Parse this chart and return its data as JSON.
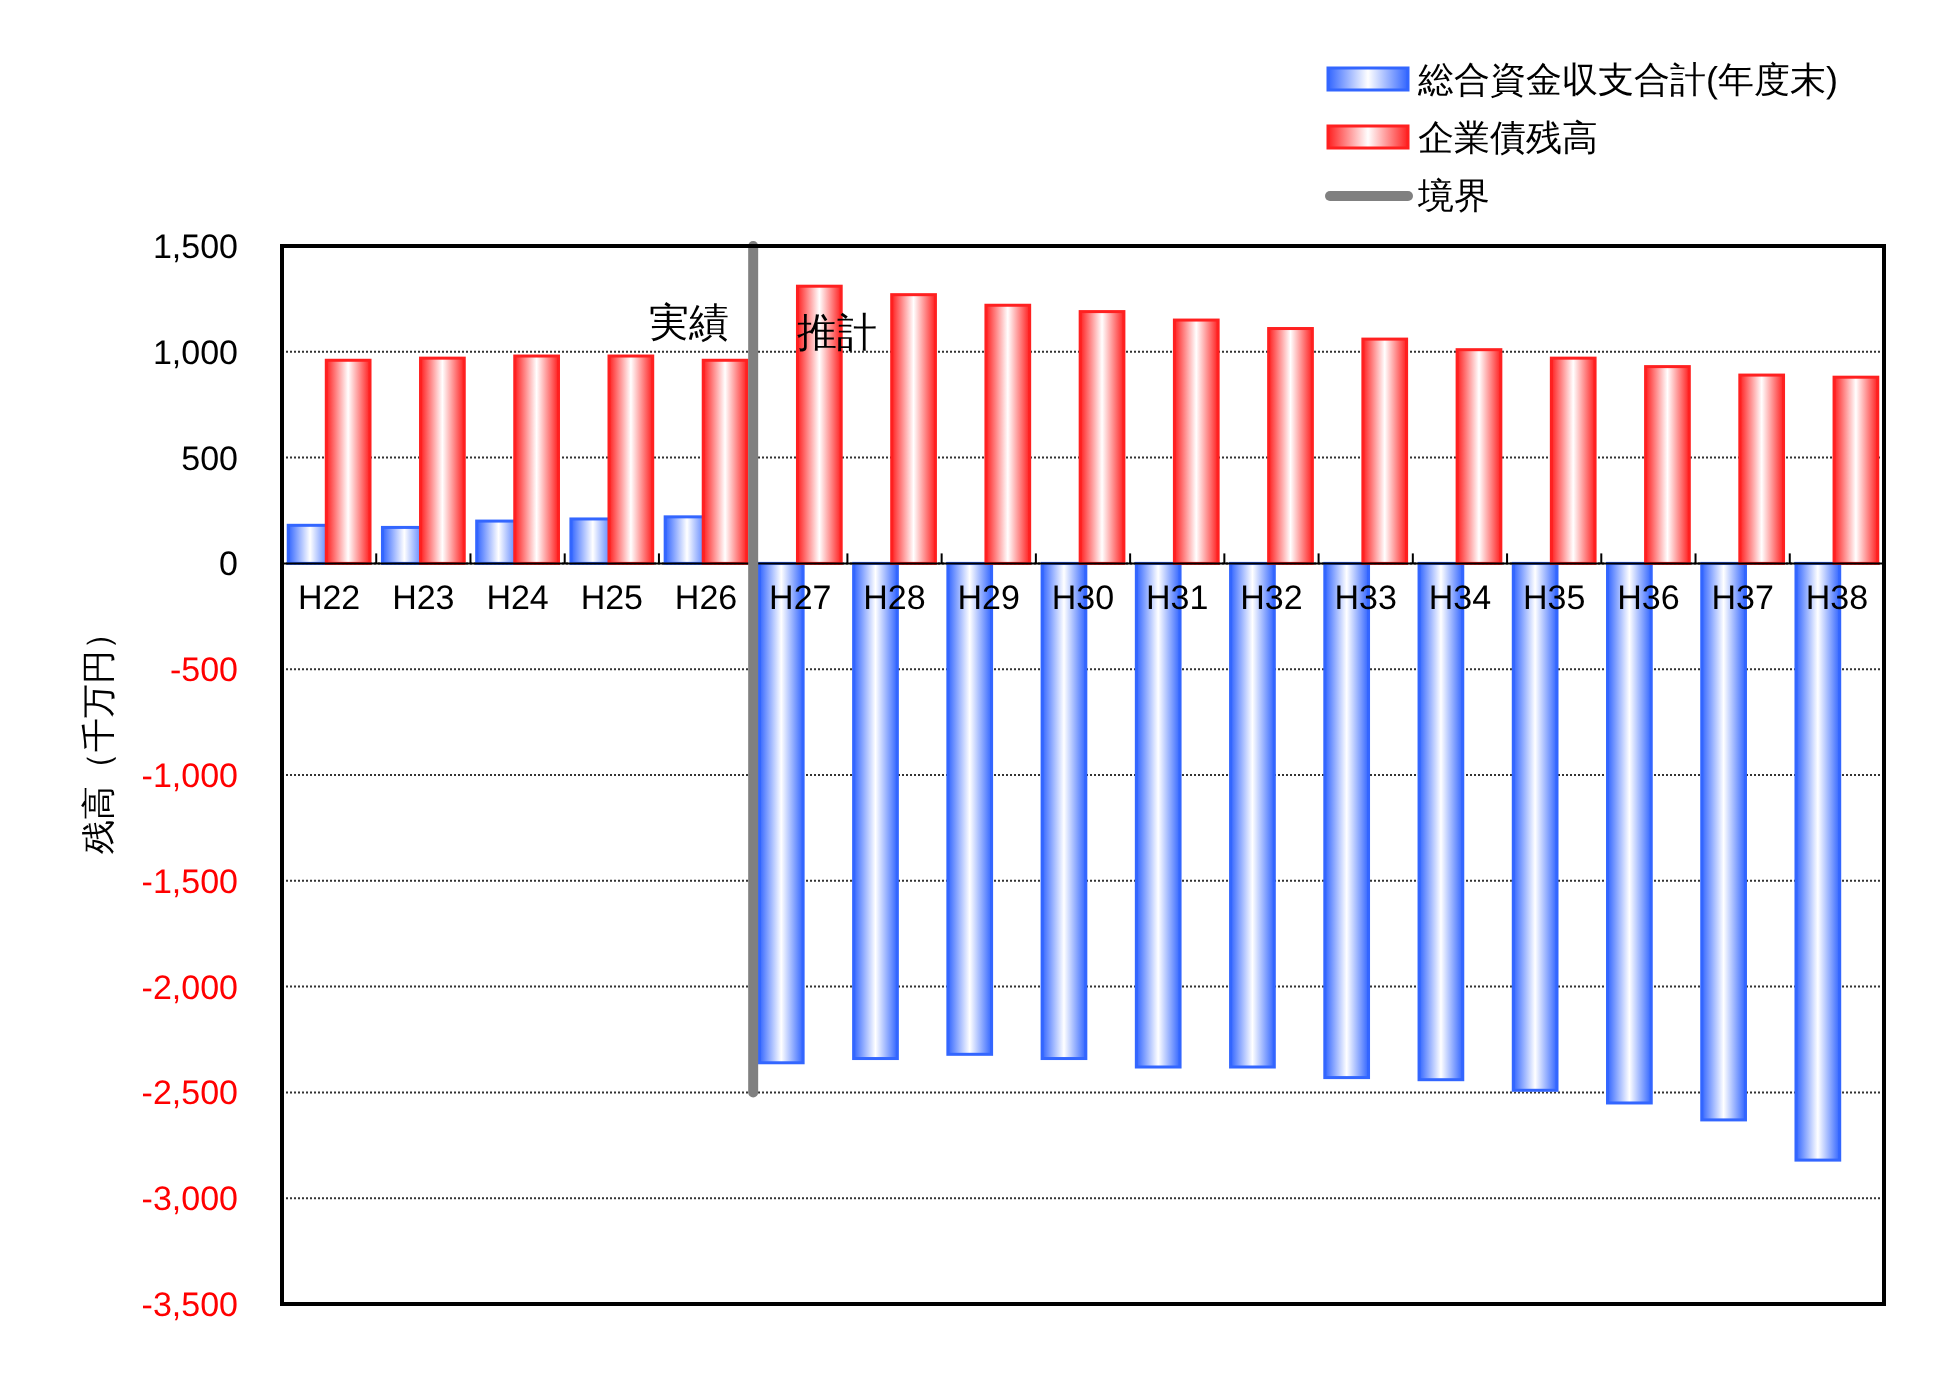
{
  "chart_data": {
    "type": "bar",
    "ylabel": "残高（千万円）",
    "categories": [
      "H22",
      "H23",
      "H24",
      "H25",
      "H26",
      "H27",
      "H28",
      "H29",
      "H30",
      "H31",
      "H32",
      "H33",
      "H34",
      "H35",
      "H36",
      "H37",
      "H38"
    ],
    "series": [
      {
        "name": "総合資金収支合計(年度末)",
        "color": "#3366ff",
        "values": [
          180,
          170,
          200,
          210,
          220,
          -2360,
          -2340,
          -2320,
          -2340,
          -2380,
          -2380,
          -2430,
          -2440,
          -2490,
          -2550,
          -2630,
          -2820
        ]
      },
      {
        "name": "企業債残高",
        "color": "#ff2020",
        "values": [
          960,
          970,
          980,
          980,
          960,
          1310,
          1270,
          1220,
          1190,
          1150,
          1110,
          1060,
          1010,
          970,
          930,
          890,
          880
        ]
      }
    ],
    "ylim": [
      -3500,
      1500
    ],
    "yticks": [
      {
        "value": -3500,
        "label": "-3,500"
      },
      {
        "value": -3000,
        "label": "-3,000"
      },
      {
        "value": -2500,
        "label": "-2,500"
      },
      {
        "value": -2000,
        "label": "-2,000"
      },
      {
        "value": -1500,
        "label": "-1,500"
      },
      {
        "value": -1000,
        "label": "-1,000"
      },
      {
        "value": -500,
        "label": "-500"
      },
      0,
      {
        "value": 500,
        "label": "500"
      },
      {
        "value": 1000,
        "label": "1,000"
      },
      {
        "value": 1500,
        "label": "1,500"
      }
    ],
    "grid": "y",
    "legend": "top right",
    "ref_lines": [
      {
        "axis": "x",
        "value": "H27",
        "label": "境界",
        "color": "#808080"
      }
    ],
    "annotations": [
      "実績",
      "推計"
    ]
  }
}
